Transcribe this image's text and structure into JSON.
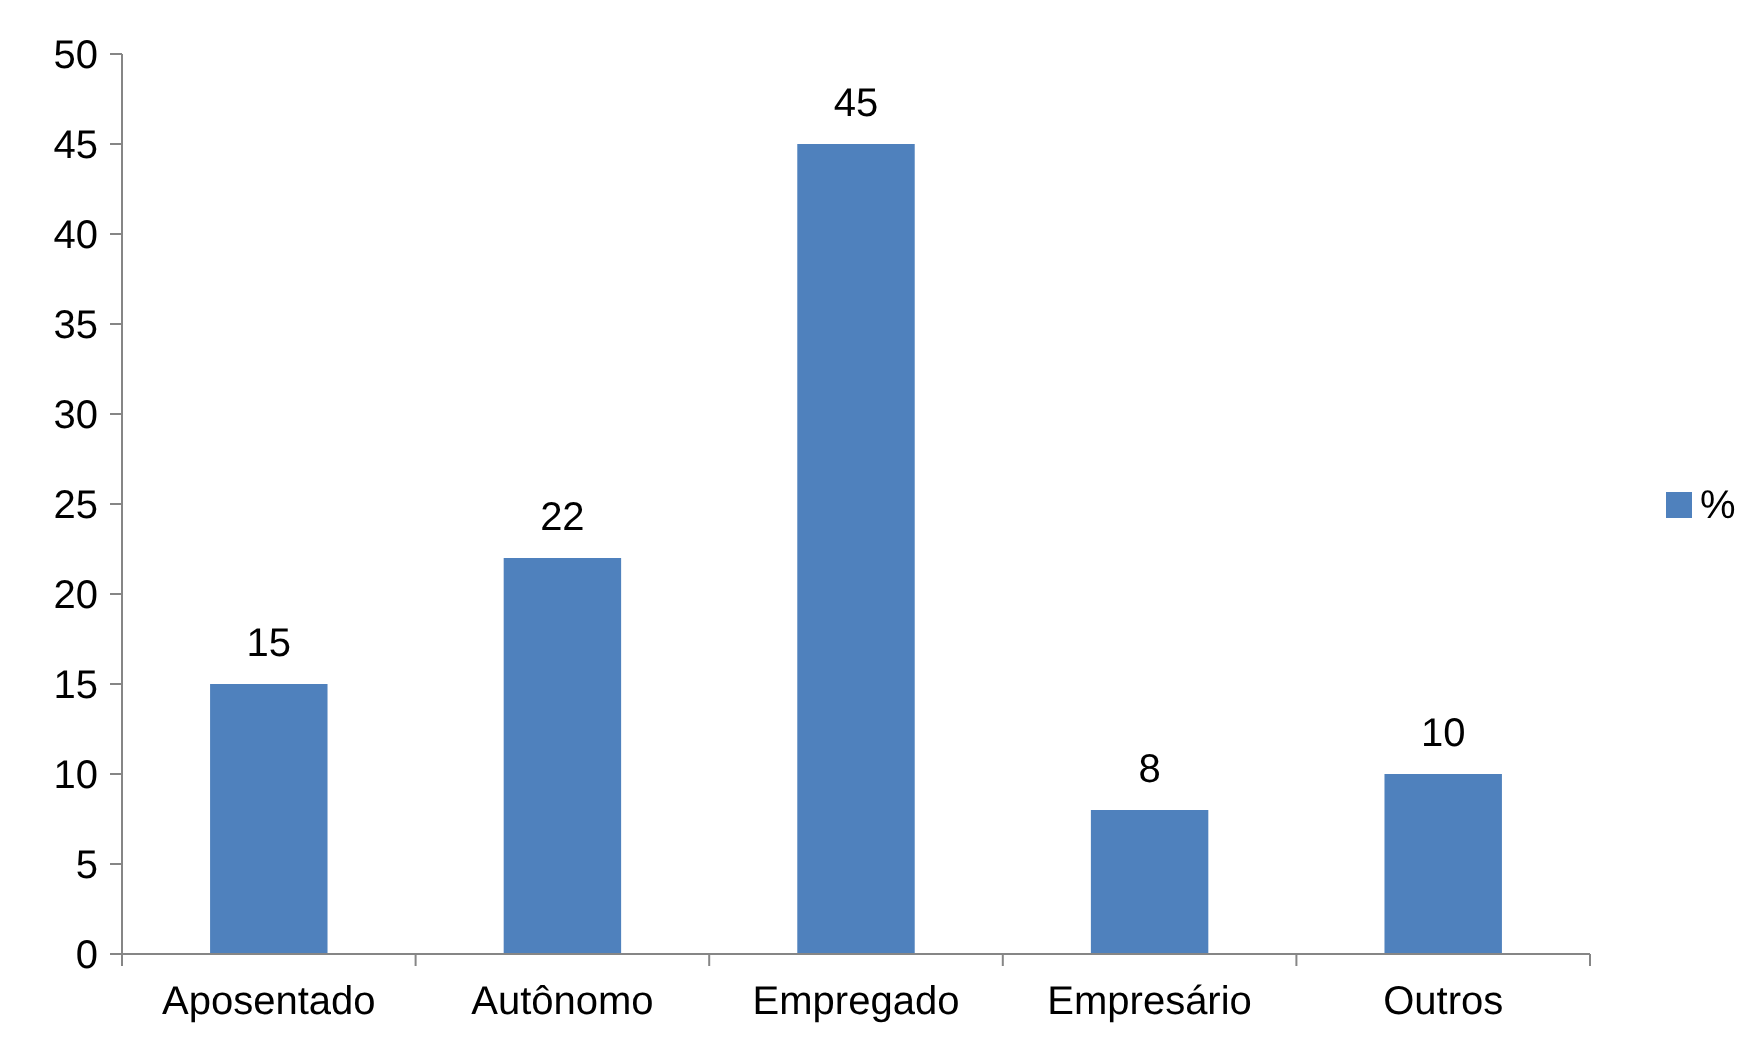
{
  "chart_data": {
    "type": "bar",
    "categories": [
      "Aposentado",
      "Autônomo",
      "Empregado",
      "Empresário",
      "Outros"
    ],
    "series": [
      {
        "name": "%",
        "color": "#4f81bd",
        "values": [
          15,
          22,
          45,
          8,
          10
        ]
      }
    ],
    "ylim": [
      0,
      50
    ],
    "yticks": [
      0,
      5,
      10,
      15,
      20,
      25,
      30,
      35,
      40,
      45,
      50
    ],
    "data_labels": true,
    "legend": "right",
    "grid": false
  }
}
